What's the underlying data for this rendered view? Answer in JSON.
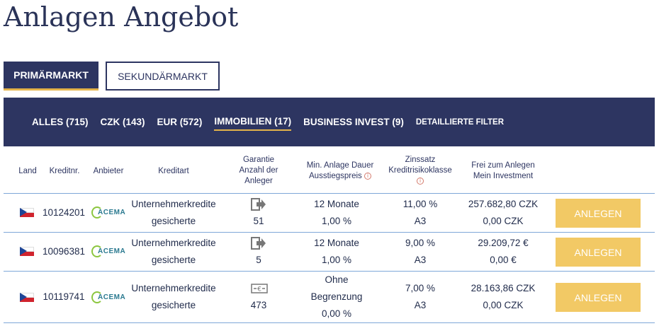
{
  "page": {
    "title": "Anlagen Angebot"
  },
  "market_tabs": [
    {
      "label": "PRIMÄRMARKT",
      "active": true
    },
    {
      "label": "SEKUNDÄRMARKT",
      "active": false
    }
  ],
  "filters": [
    {
      "label": "ALLES (715)"
    },
    {
      "label": "CZK (143)"
    },
    {
      "label": "EUR (572)"
    },
    {
      "label": "IMMOBILIEN (17)",
      "active": true
    },
    {
      "label": "BUSINESS INVEST (9)"
    },
    {
      "label": "DETAILLIERTE FILTER"
    }
  ],
  "table": {
    "headers": {
      "land": "Land",
      "kreditnr": "Kreditnr.",
      "anbieter": "Anbieter",
      "kreditart": "Kreditart",
      "garantie_l1": "Garantie",
      "garantie_l2": "Anzahl der",
      "garantie_l3": "Anleger",
      "dauer_l1": "Min. Anlage Dauer",
      "dauer_l2": "Ausstiegspreis",
      "zins_l1": "Zinssatz",
      "zins_l2": "Kreditrisikoklasse",
      "frei_l1": "Frei zum Anlegen",
      "frei_l2": "Mein Investment"
    },
    "rows": [
      {
        "country": "CZ",
        "kreditnr": "10124201",
        "anbieter": "ACEMA",
        "kreditart_l1": "Unternehmerkredite",
        "kreditart_l2": "gesicherte",
        "guarantee_icon": "buyback-arrow-icon",
        "anleger": "51",
        "dauer": "12 Monate",
        "ausstiegspreis": "1,00 %",
        "zinssatz": "11,00 %",
        "risiko": "A3",
        "frei": "257.682,80 CZK",
        "investment": "0,00 CZK",
        "button": "ANLEGEN"
      },
      {
        "country": "CZ",
        "kreditnr": "10096381",
        "anbieter": "ACEMA",
        "kreditart_l1": "Unternehmerkredite",
        "kreditart_l2": "gesicherte",
        "guarantee_icon": "buyback-arrow-icon",
        "anleger": "5",
        "dauer": "12 Monate",
        "ausstiegspreis": "1,00 %",
        "zinssatz": "9,00 %",
        "risiko": "A3",
        "frei": "29.209,72 €",
        "investment": "0,00 €",
        "button": "ANLEGEN"
      },
      {
        "country": "CZ",
        "kreditnr": "10119741",
        "anbieter": "ACEMA",
        "kreditart_l1": "Unternehmerkredite",
        "kreditart_l2": "gesicherte",
        "guarantee_icon": "cash-guarantee-icon",
        "anleger": "473",
        "dauer_l1": "Ohne",
        "dauer_l2": "Begrenzung",
        "ausstiegspreis": "0,00 %",
        "zinssatz": "7,00 %",
        "risiko": "A3",
        "frei": "28.163,86 CZK",
        "investment": "0,00 CZK",
        "button": "ANLEGEN"
      }
    ]
  },
  "colors": {
    "navy": "#2d3561",
    "accent": "#e3b34a",
    "button": "#f2c965",
    "divider": "#7ea7d8"
  }
}
